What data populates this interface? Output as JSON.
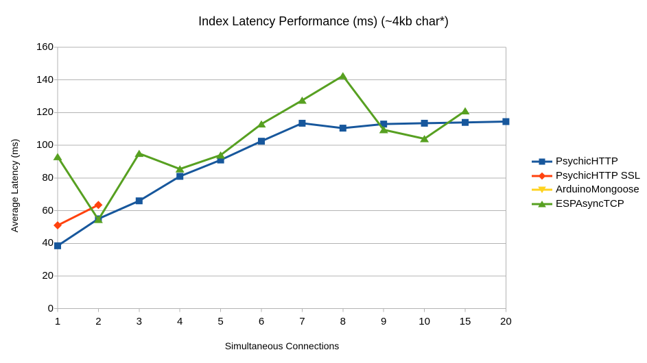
{
  "page": {
    "background": "#ffffff"
  },
  "chart_data": {
    "type": "line",
    "title": "Index Latency Performance (ms) (~4kb char*)",
    "xlabel": "Simultaneous Connections",
    "ylabel": "Average Latency (ms)",
    "categories": [
      "1",
      "2",
      "3",
      "4",
      "5",
      "6",
      "7",
      "8",
      "9",
      "10",
      "15",
      "20"
    ],
    "ylim": [
      0,
      160
    ],
    "ytick_step": 20,
    "grid": "horizontal",
    "axis_color": "#b3b3b3",
    "text_color": "#000000",
    "legend_position": "right",
    "series": [
      {
        "name": "PsychicHTTP",
        "color": "#17579c",
        "marker": "square",
        "values": [
          38.5,
          55,
          66,
          81,
          91,
          102.5,
          113.5,
          110.5,
          113,
          113.5,
          114,
          114.5
        ]
      },
      {
        "name": "PsychicHTTP SSL",
        "color": "#ff420e",
        "marker": "diamond",
        "values": [
          51,
          63.5,
          null,
          null,
          null,
          null,
          null,
          null,
          null,
          null,
          null,
          null
        ]
      },
      {
        "name": "ArduinoMongoose",
        "color": "#ffd320",
        "marker": "triangle-down",
        "values": [
          null,
          null,
          null,
          null,
          null,
          null,
          null,
          null,
          null,
          null,
          null,
          null
        ]
      },
      {
        "name": "ESPAsyncTCP",
        "color": "#57a021",
        "marker": "triangle-up",
        "values": [
          93,
          54.5,
          95,
          85.5,
          94,
          113,
          127.5,
          142.5,
          109.5,
          104,
          121,
          null
        ]
      }
    ]
  }
}
